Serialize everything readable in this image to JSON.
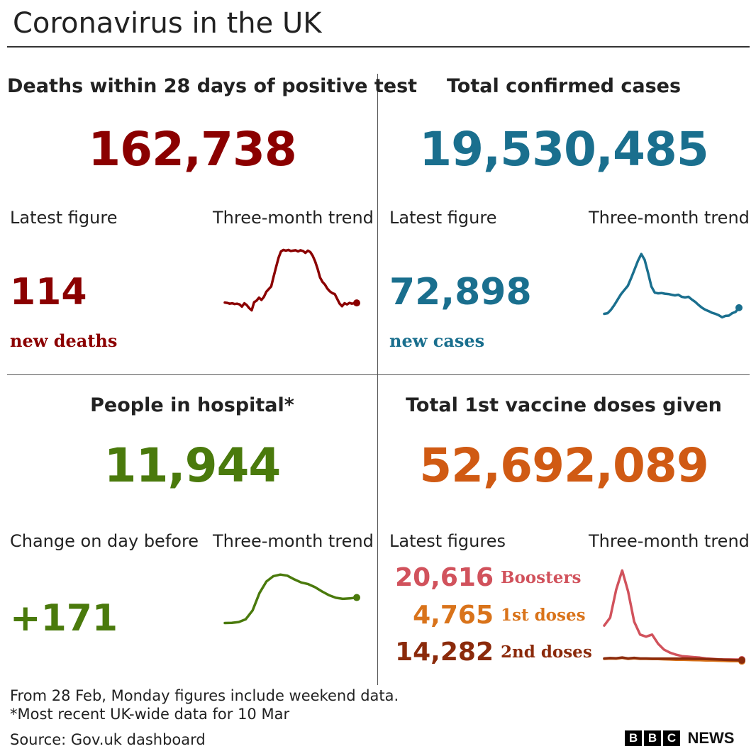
{
  "title": "Coronavirus in the UK",
  "colors": {
    "deaths": "#8b0000",
    "cases": "#1a6f8e",
    "hospital": "#4a7a0c",
    "vaccine": "#d05a13",
    "boosters": "#d1525c",
    "first_doses": "#d9731a",
    "second_doses": "#8b2a0b"
  },
  "deaths": {
    "title": "Deaths within 28 days of positive test",
    "total": "162,738",
    "latest_label": "Latest figure",
    "trend_label": "Three-month trend",
    "latest_value": "114",
    "latest_sub": "new deaths"
  },
  "cases": {
    "title": "Total confirmed cases",
    "total": "19,530,485",
    "latest_label": "Latest figure",
    "trend_label": "Three-month trend",
    "latest_value": "72,898",
    "latest_sub": "new cases"
  },
  "hospital": {
    "title": "People in hospital*",
    "total": "11,944",
    "latest_label": "Change on day before",
    "trend_label": "Three-month trend",
    "latest_value": "+171"
  },
  "vaccine": {
    "title": "Total 1st vaccine doses given",
    "total": "52,692,089",
    "latest_label": "Latest figures",
    "trend_label": "Three-month trend",
    "items": [
      {
        "value": "20,616",
        "label": "Boosters"
      },
      {
        "value": "4,765",
        "label": "1st doses"
      },
      {
        "value": "14,282",
        "label": "2nd doses"
      }
    ]
  },
  "footer": {
    "note1": "From 28 Feb, Monday figures include weekend data.",
    "note2": "*Most recent UK-wide data for 10 Mar",
    "source": "Source: Gov.uk dashboard",
    "logo_letters": [
      "B",
      "B",
      "C"
    ],
    "logo_word": "NEWS"
  },
  "chart_data": [
    {
      "type": "line",
      "name": "deaths-trend",
      "values": [
        115,
        114,
        112,
        113,
        111,
        112,
        110,
        104,
        113,
        108,
        100,
        94,
        116,
        120,
        128,
        122,
        130,
        144,
        151,
        158,
        185,
        210,
        235,
        252,
        256,
        254,
        256,
        253,
        254,
        255,
        252,
        255,
        253,
        248,
        254,
        250,
        240,
        225,
        205,
        182,
        170,
        163,
        152,
        145,
        140,
        138,
        125,
        112,
        105,
        113,
        110,
        114,
        112,
        113,
        114
      ],
      "ylim": [
        80,
        270
      ]
    },
    {
      "type": "line",
      "name": "cases-trend",
      "values": [
        30,
        32,
        42,
        56,
        72,
        88,
        100,
        112,
        135,
        160,
        185,
        205,
        188,
        150,
        110,
        92,
        90,
        91,
        89,
        88,
        86,
        84,
        86,
        80,
        78,
        80,
        72,
        65,
        56,
        48,
        42,
        38,
        33,
        30,
        26,
        20,
        24,
        25,
        32,
        36,
        48
      ],
      "ylim": [
        0,
        220
      ]
    },
    {
      "type": "line",
      "name": "hospital-trend",
      "values": [
        7100,
        7150,
        7300,
        7800,
        9500,
        12800,
        15000,
        16000,
        16300,
        16100,
        15400,
        14800,
        14500,
        13900,
        13100,
        12400,
        11900,
        11700,
        11773,
        11944
      ],
      "ylim": [
        6500,
        17000
      ]
    },
    {
      "type": "line",
      "name": "vaccine-trend",
      "series": [
        {
          "name": "Boosters",
          "values": [
            360,
            440,
            720,
            910,
            700,
            400,
            270,
            250,
            270,
            180,
            120,
            90,
            70,
            55,
            50,
            45,
            40,
            32,
            28,
            24,
            22,
            22,
            21,
            21
          ]
        },
        {
          "name": "1st doses",
          "values": [
            28,
            32,
            30,
            38,
            28,
            34,
            28,
            28,
            27,
            26,
            24,
            22,
            20,
            20,
            18,
            16,
            15,
            13,
            12,
            10,
            8,
            6,
            5,
            5
          ]
        },
        {
          "name": "2nd doses",
          "values": [
            32,
            36,
            34,
            42,
            32,
            38,
            32,
            32,
            30,
            30,
            30,
            30,
            30,
            30,
            30,
            28,
            28,
            26,
            24,
            22,
            20,
            18,
            16,
            14
          ]
        }
      ],
      "ylim": [
        0,
        920
      ]
    }
  ]
}
